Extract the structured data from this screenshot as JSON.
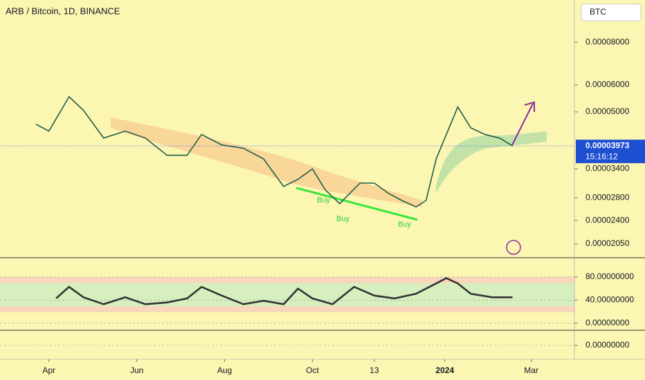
{
  "chart_data": [
    {
      "type": "line",
      "title": "ARB / Bitcoin, 1D, BINANCE",
      "currency": "BTC",
      "x": [
        -9,
        0,
        14,
        24,
        38,
        53,
        67,
        82,
        96,
        106,
        120,
        135,
        149,
        163,
        173,
        183,
        192,
        202,
        216,
        226,
        236,
        245,
        255,
        262,
        269,
        276,
        284,
        293,
        303,
        313,
        322
      ],
      "values": [
        4.6e-05,
        4.39e-05,
        5.54e-05,
        5.05e-05,
        4.19e-05,
        4.39e-05,
        4.19e-05,
        3.73e-05,
        3.73e-05,
        4.29e-05,
        4e-05,
        3.91e-05,
        3.64e-05,
        3.02e-05,
        3.17e-05,
        3.4e-05,
        2.95e-05,
        2.69e-05,
        3.09e-05,
        3.09e-05,
        2.88e-05,
        2.75e-05,
        2.63e-05,
        2.75e-05,
        3.64e-05,
        4.29e-05,
        5.17e-05,
        4.49e-05,
        4.29e-05,
        4.19e-05,
        3.973e-05
      ],
      "color": "#1f5c45",
      "log": true,
      "ylim": [
        1.875e-05,
        0.0001065
      ],
      "yticks": [
        {
          "value": 8e-05,
          "label": "0.00008000"
        },
        {
          "value": 6e-05,
          "label": "0.00006000"
        },
        {
          "value": 5e-05,
          "label": "0.00005000"
        },
        {
          "value": 3.4e-05,
          "label": "0.00003400"
        },
        {
          "value": 2.8e-05,
          "label": "0.00002800"
        },
        {
          "value": 2.4e-05,
          "label": "0.00002400"
        },
        {
          "value": 2.05e-05,
          "label": "0.00002050"
        }
      ],
      "last_price": {
        "value": 3.973e-05,
        "label": "0.00003973"
      },
      "countdown": "15:16:12",
      "xlim": [
        -34,
        365
      ],
      "xticks": [
        {
          "value": 0,
          "label": "Apr"
        },
        {
          "value": 61,
          "label": "Jun"
        },
        {
          "value": 122,
          "label": "Aug"
        },
        {
          "value": 183,
          "label": "Oct"
        },
        {
          "value": 226,
          "label": "13"
        },
        {
          "value": 275,
          "label": "2024"
        },
        {
          "value": 335,
          "label": "Mar"
        }
      ],
      "annotations": [
        "Buy",
        "Buy",
        "Buy"
      ]
    },
    {
      "type": "line",
      "x": [
        5,
        14,
        24,
        38,
        53,
        67,
        82,
        96,
        106,
        120,
        135,
        149,
        163,
        173,
        183,
        197,
        212,
        226,
        240,
        255,
        269,
        276,
        284,
        293,
        308,
        322
      ],
      "values": [
        43,
        63,
        45,
        33,
        45,
        33,
        36,
        43,
        63,
        48,
        33,
        39,
        33,
        60,
        43,
        33,
        63,
        48,
        43,
        51,
        69,
        78,
        69,
        51,
        45,
        45
      ],
      "color": "#333333",
      "ylim": [
        -12,
        111
      ],
      "yticks": [
        {
          "value": 80,
          "label": "80.00000000"
        },
        {
          "value": 40,
          "label": "40.00000000"
        },
        {
          "value": 0,
          "label": "0.00000000"
        }
      ]
    },
    {
      "type": "bar",
      "ylim": [
        -1,
        1
      ],
      "yticks": [
        {
          "value": 0,
          "label": "0.00000000"
        }
      ]
    }
  ]
}
